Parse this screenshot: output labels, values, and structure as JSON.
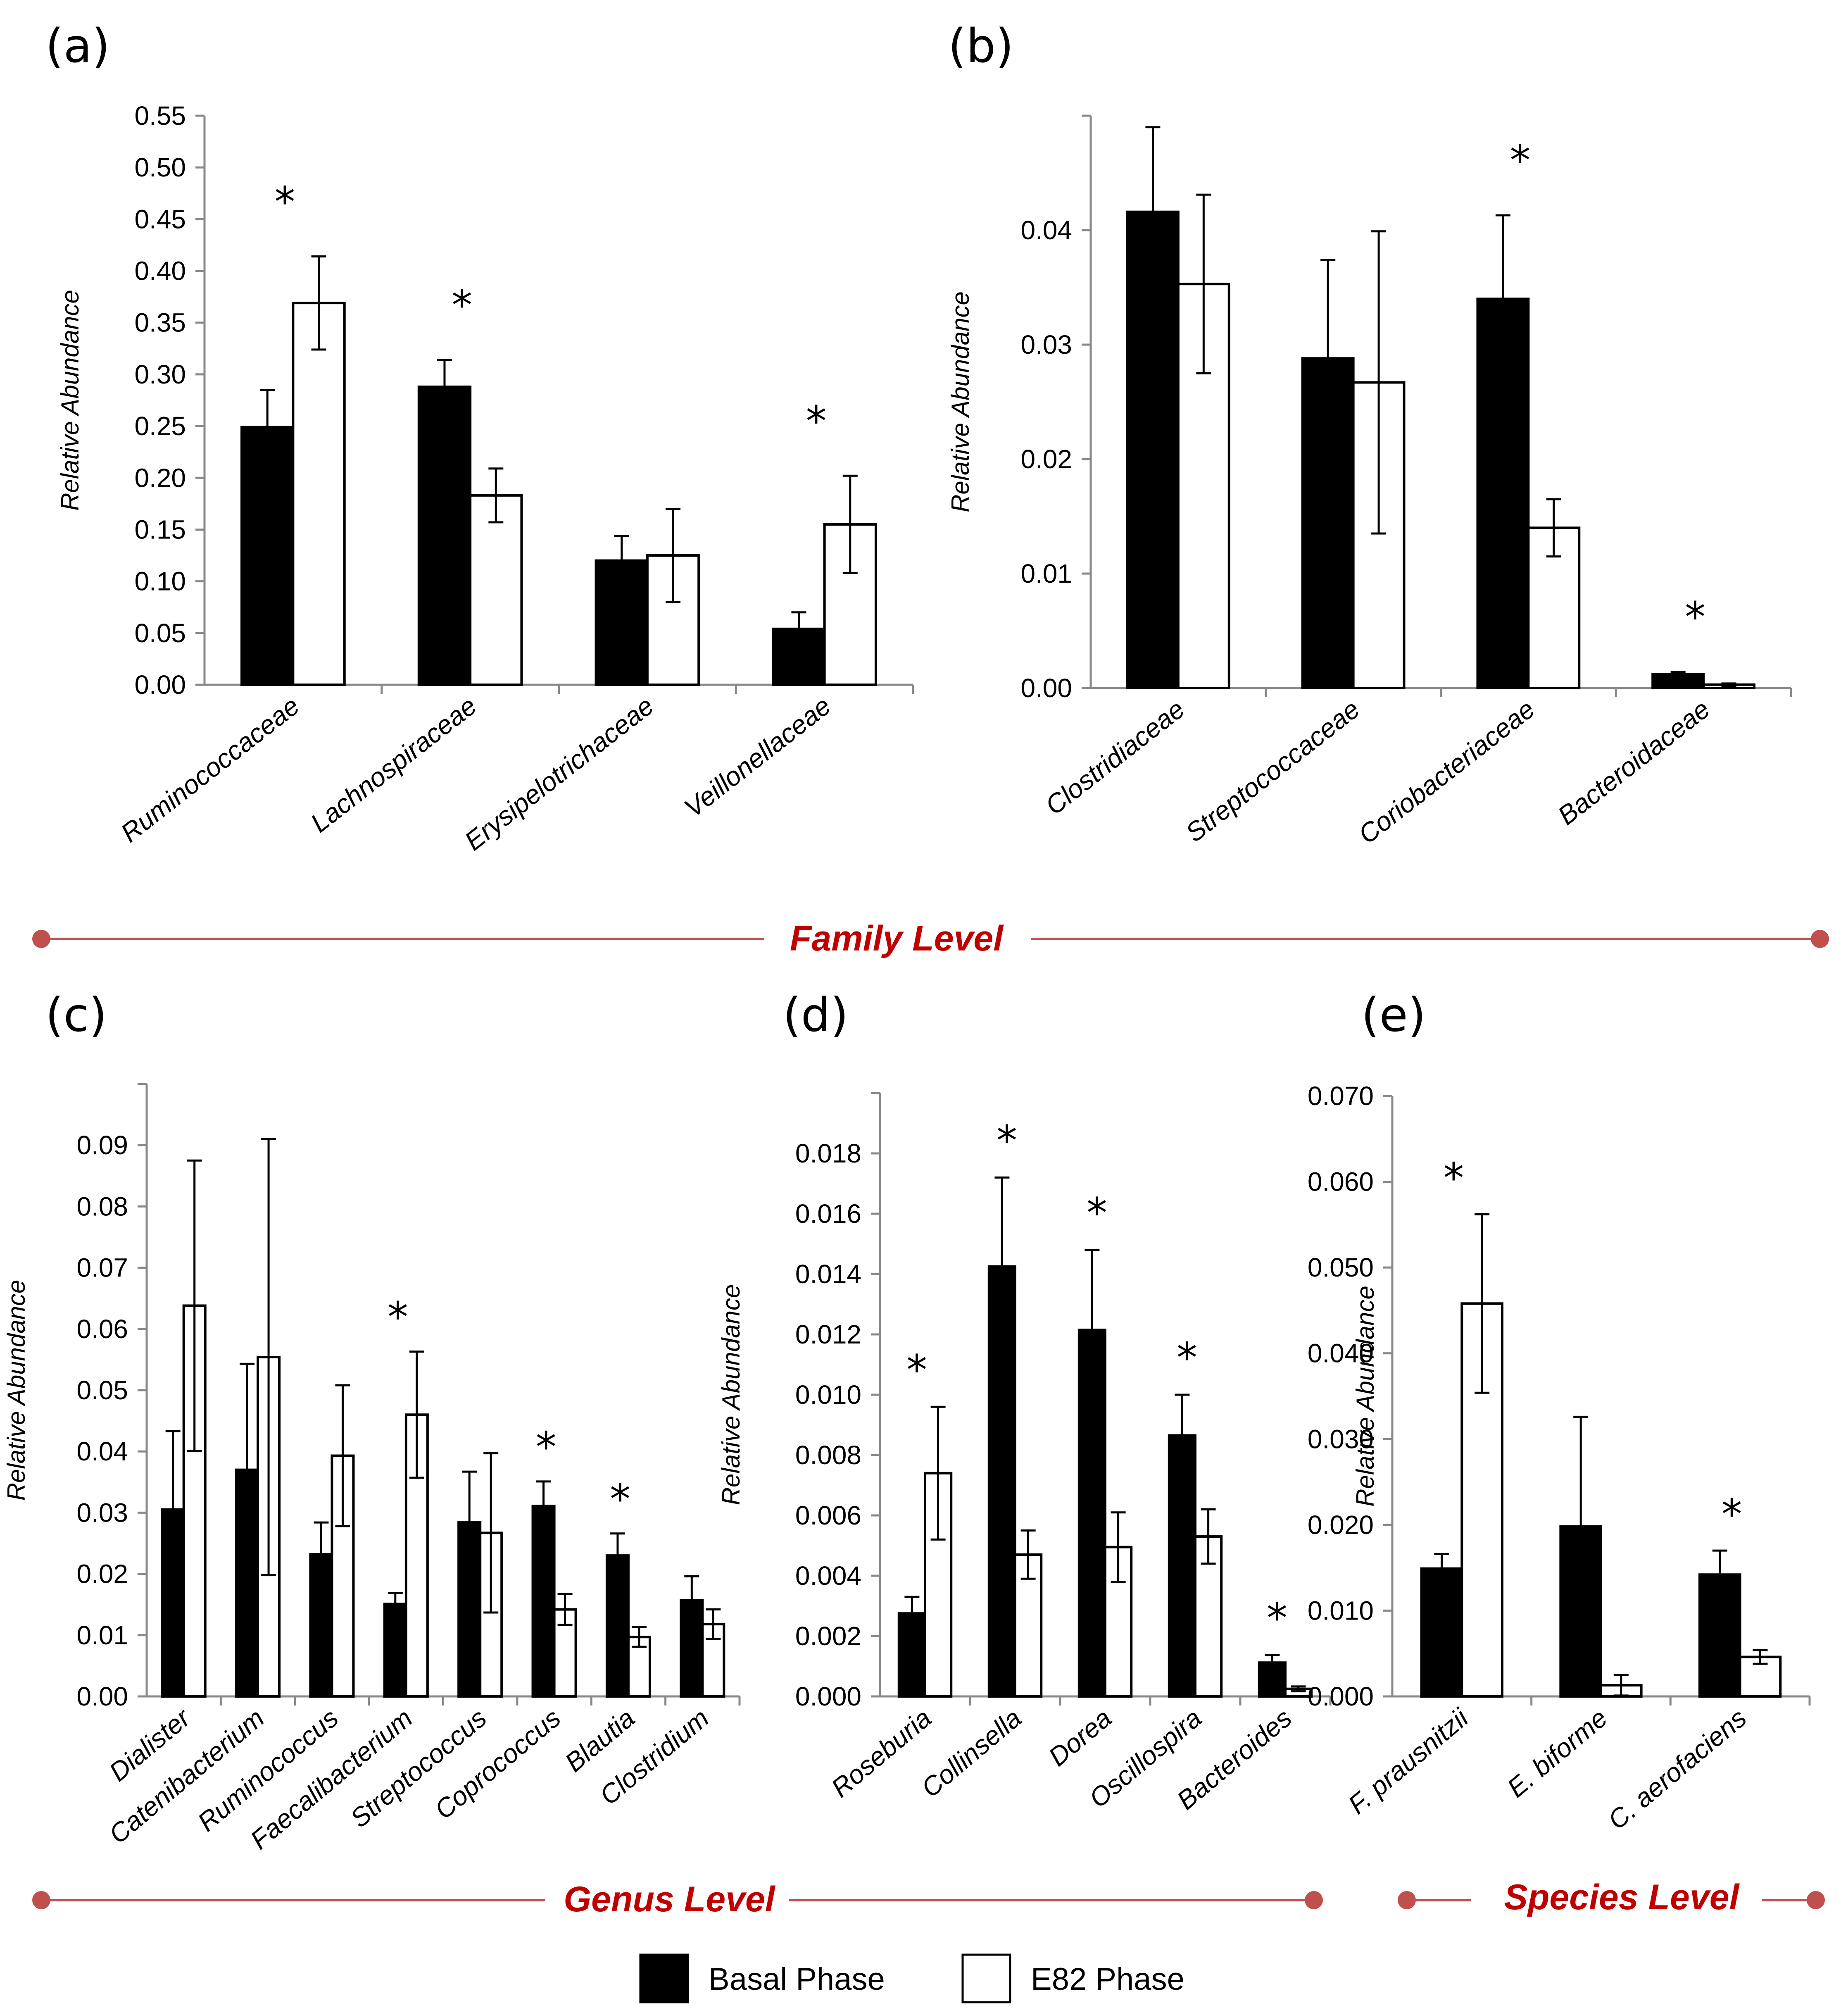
{
  "colors": {
    "basal": "#000000",
    "e82": "#ffffff",
    "level_line": "#c0504d",
    "level_text": "#c00000",
    "axis": "#888888"
  },
  "legend": {
    "basal_label": "Basal Phase",
    "e82_label": "E82 Phase"
  },
  "levels": {
    "family": "Family Level",
    "genus": "Genus Level",
    "species": "Species Level"
  },
  "chart_data": [
    {
      "id": "a",
      "panel_label": "(a)",
      "type": "bar",
      "ylabel": "Relative Abundance",
      "ylim": [
        0,
        0.55
      ],
      "yticks": [
        0.0,
        0.05,
        0.1,
        0.15,
        0.2,
        0.25,
        0.3,
        0.35,
        0.4,
        0.45,
        0.5,
        0.55
      ],
      "ytick_labels": [
        "0.00",
        "0.05",
        "0.10",
        "0.15",
        "0.20",
        "0.25",
        "0.30",
        "0.35",
        "0.40",
        "0.45",
        "0.50",
        "0.55"
      ],
      "categories": [
        "Ruminococcaceae",
        "Lachnospiraceae",
        "Erysipelotrichaceae",
        "Veillonellaceae"
      ],
      "series": [
        {
          "name": "Basal Phase",
          "values": [
            0.249,
            0.288,
            0.12,
            0.054
          ],
          "errors": [
            0.036,
            0.026,
            0.024,
            0.016
          ]
        },
        {
          "name": "E82 Phase",
          "values": [
            0.369,
            0.183,
            0.125,
            0.155
          ],
          "errors": [
            0.045,
            0.026,
            0.045,
            0.047
          ]
        }
      ],
      "significant": [
        true,
        true,
        false,
        true
      ]
    },
    {
      "id": "b",
      "panel_label": "(b)",
      "type": "bar",
      "ylabel": "Relative Abundance",
      "ylim": [
        0,
        0.05
      ],
      "yticks": [
        0.0,
        0.01,
        0.02,
        0.03,
        0.04
      ],
      "ytick_labels": [
        "0.00",
        "0.01",
        "0.02",
        "0.03",
        "0.04"
      ],
      "categories": [
        "Clostridiaceae",
        "Streptococcaceae",
        "Coriobacteriaceae",
        "Bacteroidaceae"
      ],
      "series": [
        {
          "name": "Basal Phase",
          "values": [
            0.0416,
            0.0288,
            0.034,
            0.0012
          ],
          "errors": [
            0.0074,
            0.0086,
            0.0073,
            0.0002
          ]
        },
        {
          "name": "E82 Phase",
          "values": [
            0.0353,
            0.0267,
            0.014,
            0.0003
          ],
          "errors": [
            0.0078,
            0.0132,
            0.0025,
            0.0001
          ]
        }
      ],
      "significant": [
        false,
        false,
        true,
        true
      ]
    },
    {
      "id": "c",
      "panel_label": "(c)",
      "type": "bar",
      "ylabel": "Relative Abundance",
      "ylim": [
        0,
        0.1
      ],
      "yticks": [
        0.0,
        0.01,
        0.02,
        0.03,
        0.04,
        0.05,
        0.06,
        0.07,
        0.08,
        0.09
      ],
      "ytick_labels": [
        "0.00",
        "0.01",
        "0.02",
        "0.03",
        "0.04",
        "0.05",
        "0.06",
        "0.07",
        "0.08",
        "0.09"
      ],
      "categories": [
        "Dialister",
        "Catenibacterium",
        "Ruminococcus",
        "Faecalibacterium",
        "Streptococcus",
        "Coprococcus",
        "Blautia",
        "Clostridium"
      ],
      "series": [
        {
          "name": "Basal Phase",
          "values": [
            0.0305,
            0.037,
            0.0232,
            0.0151,
            0.0284,
            0.0311,
            0.023,
            0.0157
          ],
          "errors": [
            0.0128,
            0.0173,
            0.0052,
            0.0018,
            0.0083,
            0.004,
            0.0036,
            0.0039
          ]
        },
        {
          "name": "E82 Phase",
          "values": [
            0.0638,
            0.0554,
            0.0393,
            0.046,
            0.0267,
            0.0142,
            0.0097,
            0.0118
          ],
          "errors": [
            0.0237,
            0.0356,
            0.0115,
            0.0103,
            0.013,
            0.0025,
            0.0016,
            0.0024
          ]
        }
      ],
      "significant": [
        false,
        false,
        false,
        true,
        false,
        true,
        true,
        false
      ]
    },
    {
      "id": "d",
      "panel_label": "(d)",
      "type": "bar",
      "ylabel": "Relative Abundance",
      "ylim": [
        0,
        0.02
      ],
      "yticks": [
        0.0,
        0.002,
        0.004,
        0.006,
        0.008,
        0.01,
        0.012,
        0.014,
        0.016,
        0.018
      ],
      "ytick_labels": [
        "0.000",
        "0.002",
        "0.004",
        "0.006",
        "0.008",
        "0.010",
        "0.012",
        "0.014",
        "0.016",
        "0.018"
      ],
      "categories": [
        "Roseburia",
        "Collinsella",
        "Dorea",
        "Oscillospira",
        "Bacteroides"
      ],
      "series": [
        {
          "name": "Basal Phase",
          "values": [
            0.00275,
            0.01425,
            0.01215,
            0.00865,
            0.00112
          ],
          "errors": [
            0.00055,
            0.00295,
            0.00265,
            0.00135,
            0.00025
          ]
        },
        {
          "name": "E82 Phase",
          "values": [
            0.0074,
            0.0047,
            0.00495,
            0.0053,
            0.00025
          ],
          "errors": [
            0.0022,
            0.0008,
            0.00115,
            0.0009,
            8e-05
          ]
        }
      ],
      "significant": [
        true,
        true,
        true,
        true,
        true
      ]
    },
    {
      "id": "e",
      "panel_label": "(e)",
      "type": "bar",
      "ylabel": "Relative Abundance",
      "ylim": [
        0,
        0.07
      ],
      "yticks": [
        0.0,
        0.01,
        0.02,
        0.03,
        0.04,
        0.05,
        0.06,
        0.07
      ],
      "ytick_labels": [
        "0.000",
        "0.010",
        "0.020",
        "0.030",
        "0.040",
        "0.050",
        "0.060",
        "0.070"
      ],
      "categories": [
        "F. prausnitzii",
        "E. biforme",
        "C. aerofaciens"
      ],
      "series": [
        {
          "name": "Basal Phase",
          "values": [
            0.0149,
            0.0198,
            0.0142
          ],
          "errors": [
            0.0017,
            0.0128,
            0.0028
          ]
        },
        {
          "name": "E82 Phase",
          "values": [
            0.0458,
            0.0013,
            0.0046
          ],
          "errors": [
            0.0104,
            0.0012,
            0.0008
          ]
        }
      ],
      "significant": [
        true,
        false,
        true
      ]
    }
  ]
}
